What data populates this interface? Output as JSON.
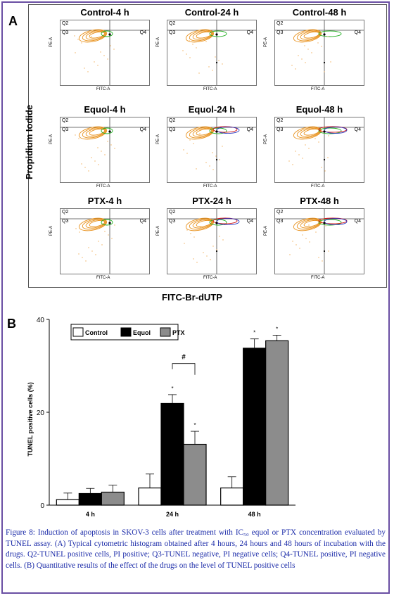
{
  "panel_a": {
    "letter": "A",
    "y_title": "Propidium Iodide",
    "x_title": "FITC-Br-dUTP",
    "quadrant_labels": {
      "q2": "Q2",
      "q3": "Q3",
      "q4": "Q4"
    },
    "axis_y": "PE-A",
    "axis_x": "FITC-A",
    "plots": [
      {
        "title": "Control-4 h"
      },
      {
        "title": "Control-24 h"
      },
      {
        "title": "Control-48 h"
      },
      {
        "title": "Equol-4 h"
      },
      {
        "title": "Equol-24 h"
      },
      {
        "title": "Equol-48 h"
      },
      {
        "title": "PTX-4 h"
      },
      {
        "title": "PTX-24 h"
      },
      {
        "title": "PTX-48 h"
      }
    ]
  },
  "panel_b": {
    "letter": "B"
  },
  "chart_data": {
    "type": "bar",
    "ylabel": "TUNEL positive cells (%)",
    "ylim": [
      0,
      40
    ],
    "yticks": [
      0,
      20,
      40
    ],
    "categories": [
      "4 h",
      "24 h",
      "48 h"
    ],
    "series": [
      {
        "name": "Control",
        "values": [
          1.2,
          3.7,
          3.7
        ],
        "errors": [
          1.4,
          3.0,
          2.4
        ],
        "color": "#ffffff"
      },
      {
        "name": "Equol",
        "values": [
          2.5,
          21.9,
          33.8
        ],
        "errors": [
          1.1,
          1.9,
          2.0
        ],
        "color": "#000000"
      },
      {
        "name": "PTX",
        "values": [
          2.8,
          13.1,
          35.4
        ],
        "errors": [
          1.5,
          2.8,
          1.2
        ],
        "color": "#8c8c8c"
      }
    ],
    "significance_marks": {
      "star": "*",
      "hash": "#"
    },
    "legend_position": "top-left"
  },
  "caption": "Figure 8: Induction of apoptosis in SKOV-3 cells after treatment with IC₅₀ equol or PTX concentration evaluated by TUNEL assay. (A) Typical cytometric histogram obtained after 4 hours, 24 hours and 48 hours of incubation with the drugs. Q2-TUNEL positive cells, PI positive; Q3-TUNEL negative, PI negative cells; Q4-TUNEL positive, PI negative cells. (B) Quantitative results of the effect of the drugs on the level of TUNEL positive cells",
  "colors": {
    "border": "#6a4fa3",
    "caption": "#1a2aa8",
    "contour_orange": "#e8901a",
    "contour_green": "#22b022",
    "contour_red": "#d01010",
    "contour_blue": "#2030c0"
  }
}
